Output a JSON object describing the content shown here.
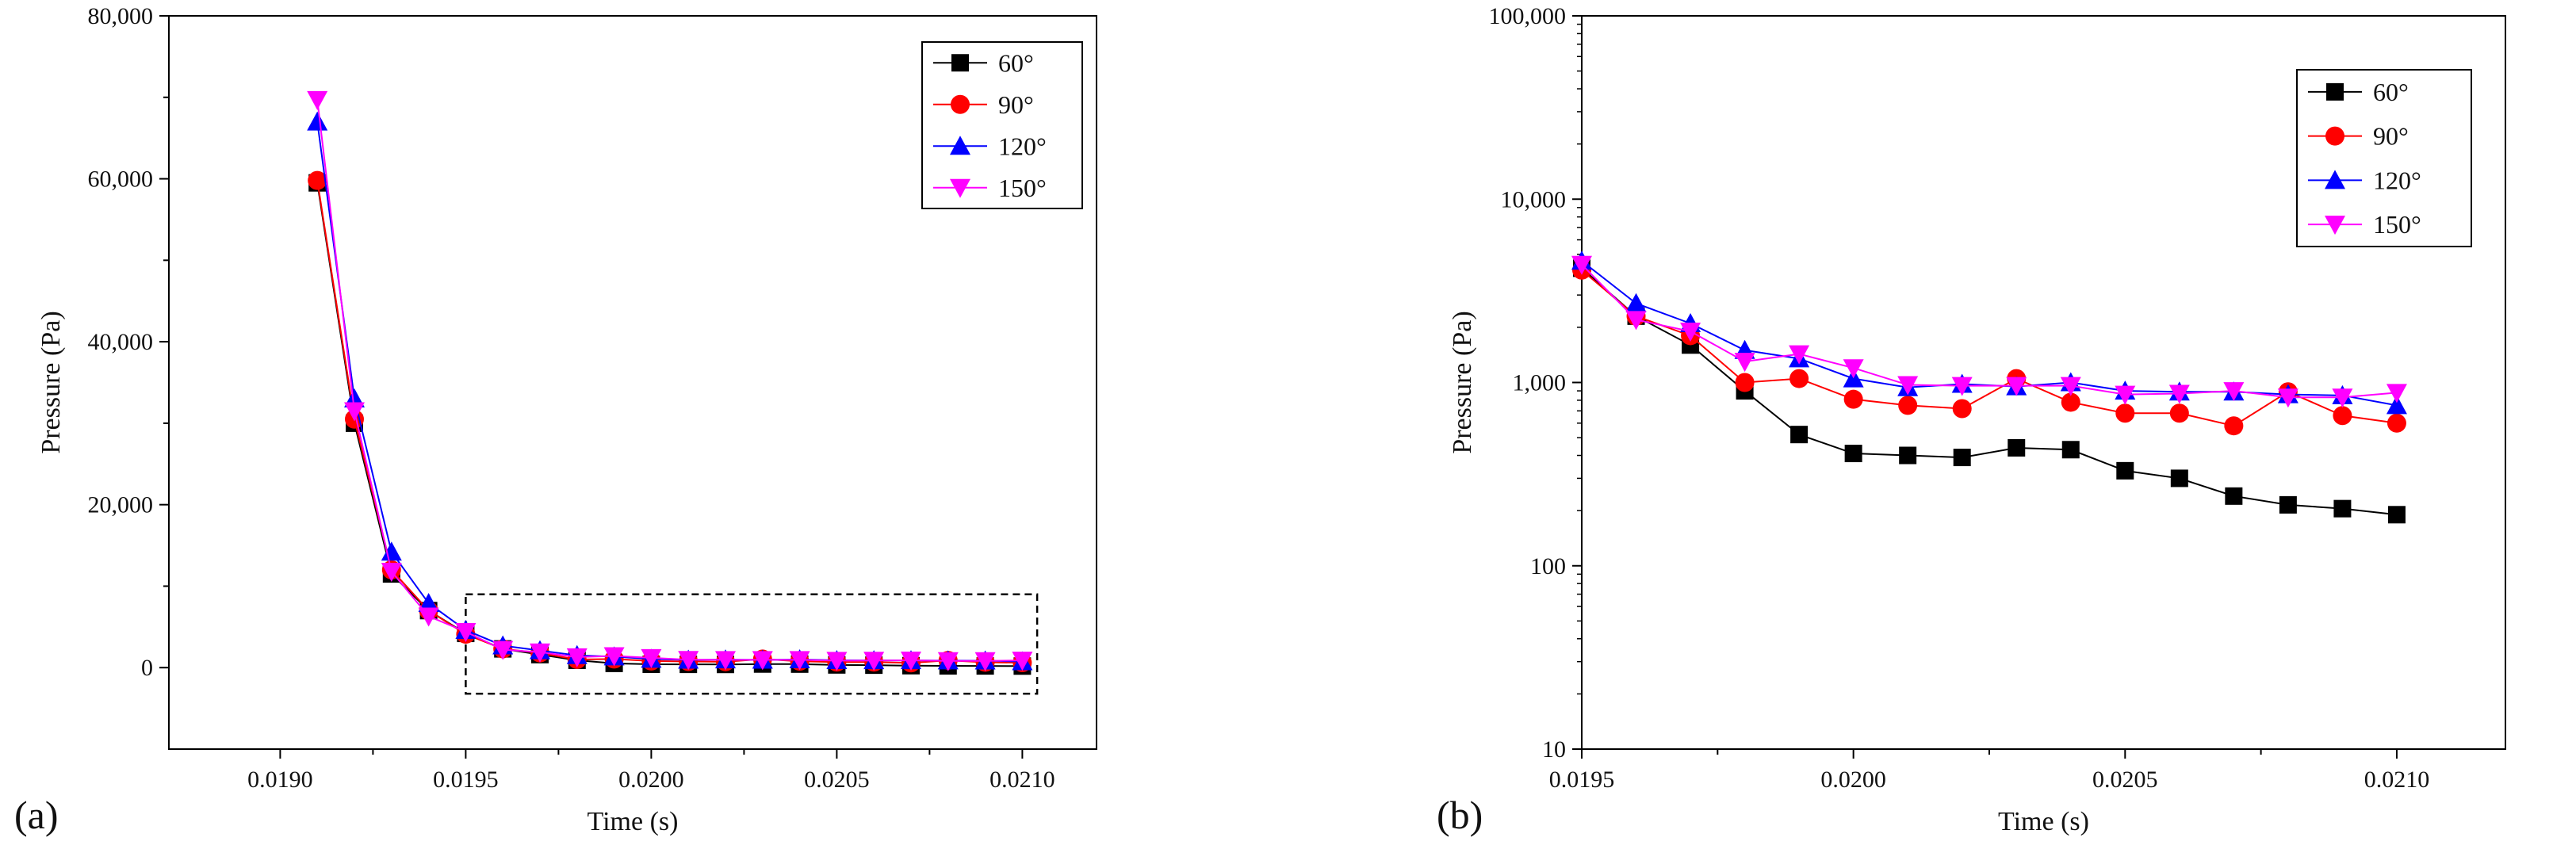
{
  "figure": {
    "panel_a_label": "(a)",
    "panel_b_label": "(b)"
  },
  "chart_data": [
    {
      "type": "line",
      "panel": "(a)",
      "scale": "linear",
      "xlabel": "Time (s)",
      "ylabel": "Pressure (Pa)",
      "xlim": [
        0.0187,
        0.0212
      ],
      "ylim": [
        -10000,
        80000
      ],
      "xticks": [
        0.019,
        0.0195,
        0.02,
        0.0205,
        0.021
      ],
      "xtick_labels": [
        "0.0190",
        "0.0195",
        "0.0200",
        "0.0205",
        "0.0210"
      ],
      "yticks": [
        0,
        20000,
        40000,
        60000,
        80000
      ],
      "ytick_labels": [
        "0",
        "20,000",
        "40,000",
        "60,000",
        "80,000"
      ],
      "legend_position": "top-right",
      "annotation": "dashed rectangle highlighting 0.0195–0.0210 s region",
      "highlight_box": {
        "x": [
          0.0195,
          0.02104
        ],
        "y": [
          -3200,
          9000
        ]
      },
      "x": [
        0.0191,
        0.0192,
        0.0193,
        0.0194,
        0.0195,
        0.0196,
        0.0197,
        0.0198,
        0.0199,
        0.02,
        0.0201,
        0.0202,
        0.0203,
        0.0204,
        0.0205,
        0.0206,
        0.0207,
        0.0208,
        0.0209,
        0.021
      ],
      "series": [
        {
          "name": "60°",
          "color": "#000000",
          "marker": "square",
          "values": [
            59500,
            30000,
            11500,
            7000,
            4200,
            2300,
            1600,
            900,
            520,
            410,
            400,
            390,
            440,
            430,
            330,
            300,
            240,
            215,
            205,
            190
          ]
        },
        {
          "name": "90°",
          "color": "#ff0000",
          "marker": "circle",
          "values": [
            59800,
            30500,
            12000,
            7000,
            4100,
            2300,
            1800,
            1000,
            1050,
            810,
            750,
            720,
            1050,
            780,
            680,
            680,
            580,
            890,
            660,
            600
          ]
        },
        {
          "name": "120°",
          "color": "#0000ff",
          "marker": "triangle-up",
          "values": [
            67000,
            33000,
            14200,
            7900,
            4600,
            2700,
            2100,
            1500,
            1350,
            1050,
            940,
            980,
            950,
            1000,
            900,
            890,
            890,
            860,
            850,
            750
          ]
        },
        {
          "name": "150°",
          "color": "#ff00ff",
          "marker": "triangle-down",
          "values": [
            69700,
            31500,
            11800,
            6300,
            4400,
            2200,
            1900,
            1300,
            1430,
            1200,
            970,
            960,
            960,
            960,
            860,
            870,
            900,
            830,
            830,
            880
          ]
        }
      ]
    },
    {
      "type": "line",
      "panel": "(b)",
      "scale": "log",
      "xlabel": "Time (s)",
      "ylabel": "Pressure (Pa)",
      "xlim": [
        0.0195,
        0.0212
      ],
      "ylim": [
        10,
        100000
      ],
      "xticks": [
        0.0195,
        0.02,
        0.0205,
        0.021
      ],
      "xtick_labels": [
        "0.0195",
        "0.0200",
        "0.0205",
        "0.0210"
      ],
      "yticks": [
        10,
        100,
        1000,
        10000,
        100000
      ],
      "ytick_labels": [
        "10",
        "100",
        "1,000",
        "10,000",
        "100,000"
      ],
      "legend_position": "top-right",
      "x": [
        0.0195,
        0.0196,
        0.0197,
        0.0198,
        0.0199,
        0.02,
        0.0201,
        0.0202,
        0.0203,
        0.0204,
        0.0205,
        0.0206,
        0.0207,
        0.0208,
        0.0209,
        0.021
      ],
      "series": [
        {
          "name": "60°",
          "color": "#000000",
          "marker": "square",
          "values": [
            4200,
            2300,
            1600,
            900,
            520,
            410,
            400,
            390,
            440,
            430,
            330,
            300,
            240,
            215,
            205,
            190
          ]
        },
        {
          "name": "90°",
          "color": "#ff0000",
          "marker": "circle",
          "values": [
            4100,
            2300,
            1800,
            1000,
            1050,
            810,
            750,
            720,
            1050,
            780,
            680,
            680,
            580,
            890,
            660,
            600
          ]
        },
        {
          "name": "120°",
          "color": "#0000ff",
          "marker": "triangle-up",
          "values": [
            4600,
            2700,
            2100,
            1500,
            1350,
            1050,
            940,
            980,
            950,
            1000,
            900,
            890,
            890,
            860,
            850,
            750
          ]
        },
        {
          "name": "150°",
          "color": "#ff00ff",
          "marker": "triangle-down",
          "values": [
            4400,
            2200,
            1900,
            1300,
            1430,
            1200,
            970,
            960,
            960,
            960,
            860,
            870,
            900,
            830,
            830,
            880
          ]
        }
      ]
    }
  ]
}
